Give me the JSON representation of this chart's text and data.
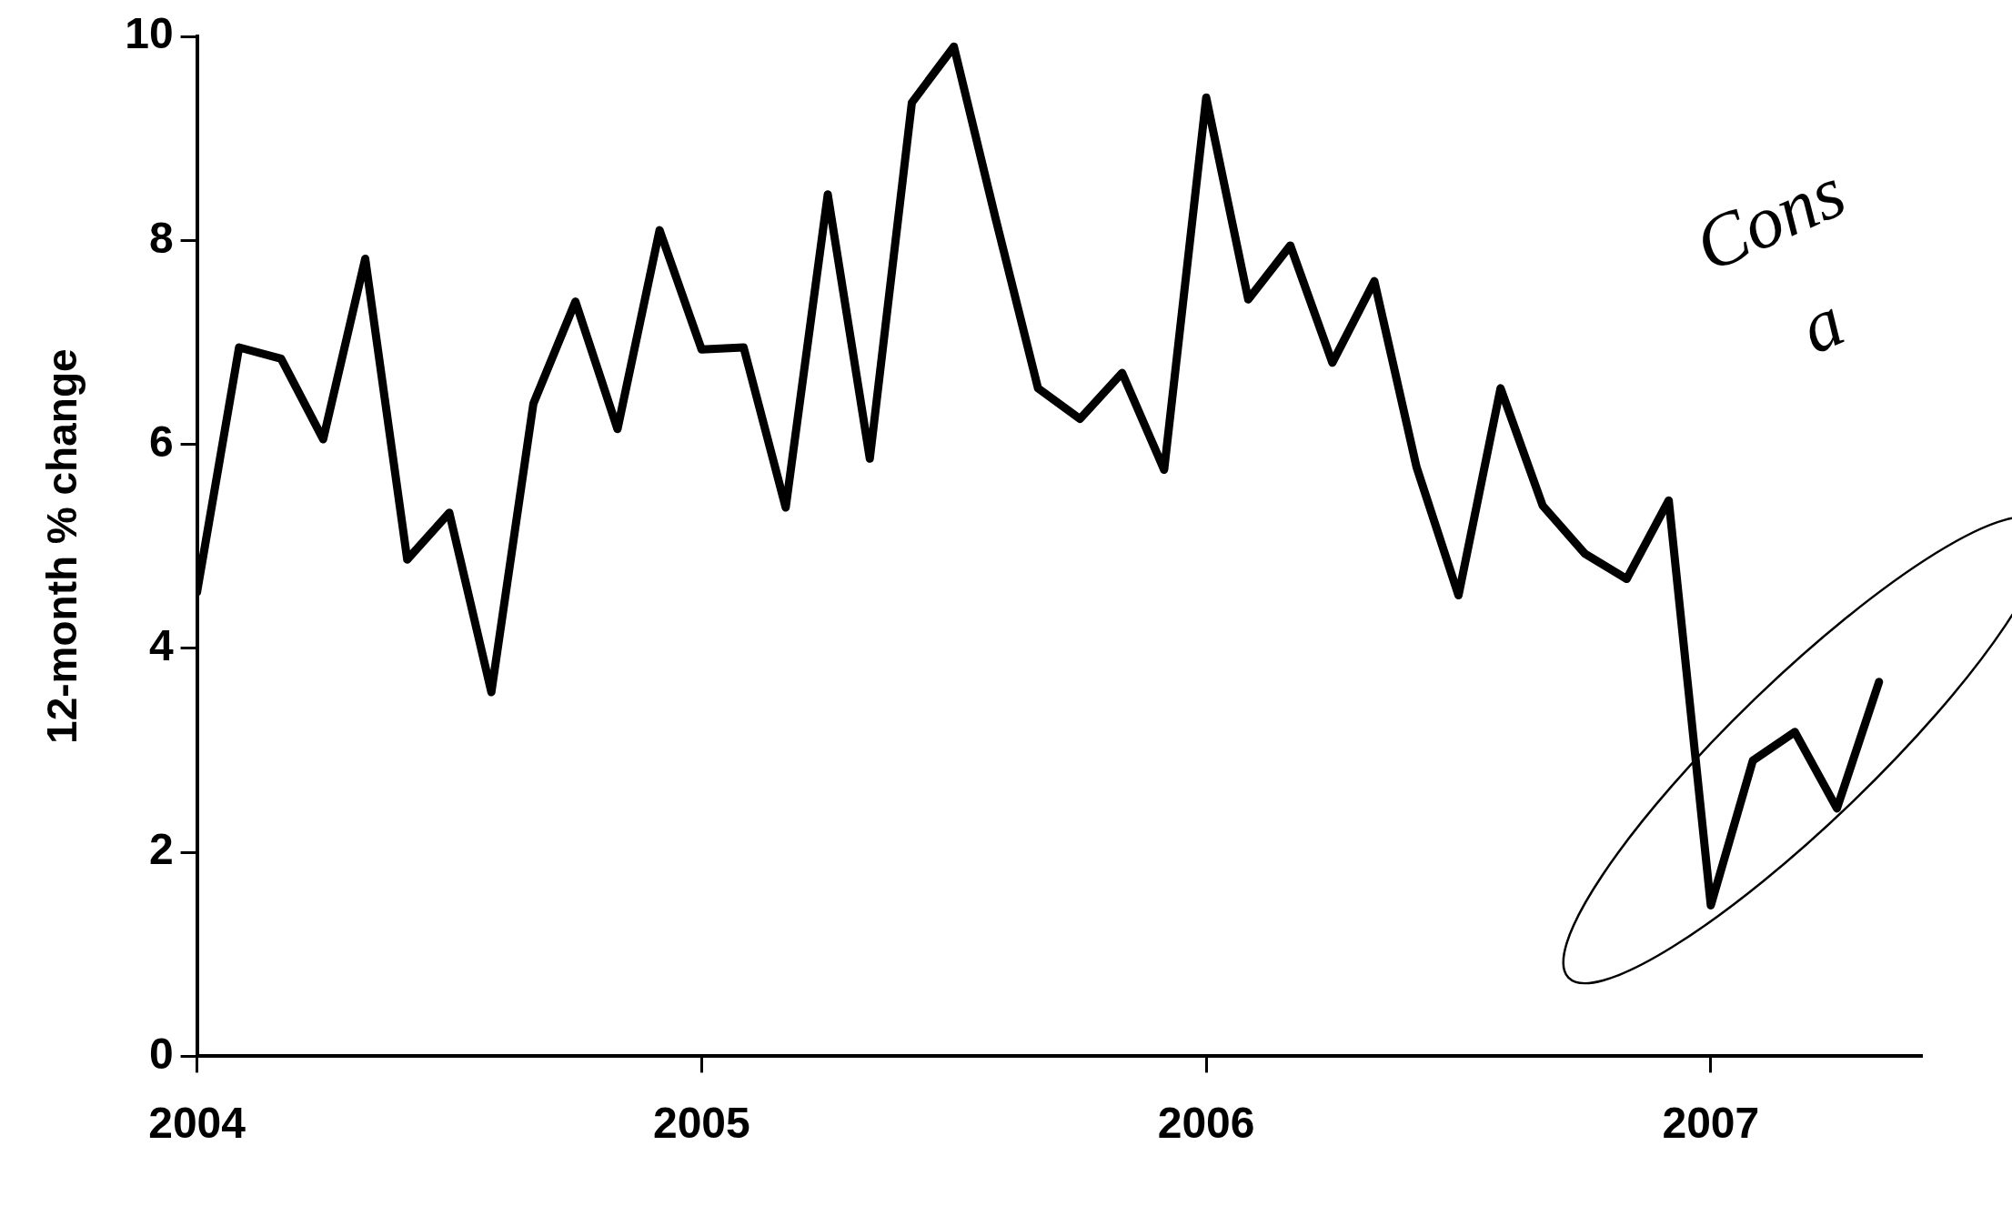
{
  "chart_data": {
    "type": "line",
    "ylabel": "12-month % change",
    "x": [
      "2004-01",
      "2004-02",
      "2004-03",
      "2004-04",
      "2004-05",
      "2004-06",
      "2004-07",
      "2004-08",
      "2004-09",
      "2004-10",
      "2004-11",
      "2004-12",
      "2005-01",
      "2005-02",
      "2005-03",
      "2005-04",
      "2005-05",
      "2005-06",
      "2005-07",
      "2005-08",
      "2005-09",
      "2005-10",
      "2005-11",
      "2005-12",
      "2006-01",
      "2006-02",
      "2006-03",
      "2006-04",
      "2006-05",
      "2006-06",
      "2006-07",
      "2006-08",
      "2006-09",
      "2006-10",
      "2006-11",
      "2006-12",
      "2007-01",
      "2007-02",
      "2007-03",
      "2007-04",
      "2007-05"
    ],
    "series": [
      {
        "color": "#000000",
        "values": [
          4.55,
          6.95,
          6.84,
          6.05,
          7.82,
          4.87,
          5.33,
          3.57,
          6.4,
          7.4,
          6.15,
          8.1,
          6.93,
          6.95,
          5.38,
          8.45,
          5.86,
          9.35,
          9.9,
          8.2,
          6.55,
          6.25,
          6.7,
          5.75,
          9.4,
          7.42,
          7.95,
          6.8,
          7.6,
          5.78,
          4.52,
          6.55,
          5.4,
          4.93,
          4.68,
          5.45,
          1.48,
          2.9,
          3.18,
          2.43,
          3.67
        ]
      }
    ],
    "xlim": [
      "2004-01",
      "2007-06"
    ],
    "xticks": [
      "2004",
      "2005",
      "2006",
      "2007"
    ],
    "ylim": [
      0,
      10
    ],
    "yticks": [
      0,
      2,
      4,
      6,
      8,
      10
    ],
    "grid": false,
    "legend": false,
    "marker": "none",
    "line_style": "solid",
    "annotations": [
      "Cons",
      "a"
    ]
  }
}
